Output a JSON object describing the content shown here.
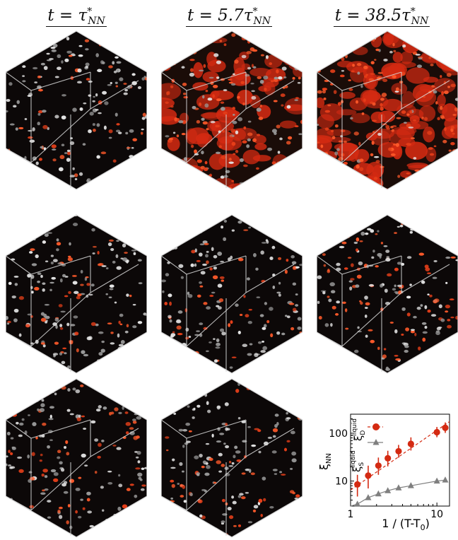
{
  "columns": [
    {
      "title": "t = τ*NN",
      "base": "t = τ",
      "sup": "*",
      "sub": "NN"
    },
    {
      "title": "t = 5.7τ*NN",
      "base": "t = 5.7τ",
      "sup": "*",
      "sub": "NN"
    },
    {
      "title": "t = 38.5τ*NN",
      "base": "t = 38.5τ",
      "sup": "*",
      "sub": "NN"
    }
  ],
  "panels": [
    {
      "row": 0,
      "col": 0,
      "red_fraction": 0.25,
      "dark": true
    },
    {
      "row": 0,
      "col": 1,
      "red_fraction": 0.6,
      "dark": false
    },
    {
      "row": 0,
      "col": 2,
      "red_fraction": 0.85,
      "dark": false
    },
    {
      "row": 1,
      "col": 0,
      "red_fraction": 0.25,
      "dark": true
    },
    {
      "row": 1,
      "col": 1,
      "red_fraction": 0.3,
      "dark": true
    },
    {
      "row": 1,
      "col": 2,
      "red_fraction": 0.45,
      "dark": true
    },
    {
      "row": 2,
      "col": 0,
      "red_fraction": 0.3,
      "dark": true
    },
    {
      "row": 2,
      "col": 1,
      "red_fraction": 0.3,
      "dark": true
    }
  ],
  "colors": {
    "red_series": "#d42a12",
    "gray_series": "#7f7f7f",
    "cube_edge": "#d8d8d8"
  },
  "chart_data": {
    "type": "scatter",
    "xscale": "log",
    "yscale": "log",
    "xlim": [
      1,
      14
    ],
    "ylim": [
      3,
      250
    ],
    "xlabel": "1 / (T-T0)",
    "ylabel": "ξNN",
    "xticks": [
      "1",
      "10"
    ],
    "yticks": [
      "10",
      "100"
    ],
    "series": [
      {
        "name": "ξD liquid",
        "label_base": "ξ",
        "label_sub": "D",
        "label_sup": "liquid",
        "marker": "circle",
        "color": "#d42a12",
        "x": [
          1.2,
          1.6,
          2.1,
          2.7,
          3.6,
          5.0,
          10.0,
          12.5
        ],
        "y": [
          8.5,
          13,
          21,
          30,
          42,
          60,
          105,
          130
        ],
        "err": [
          5,
          8,
          10,
          13,
          15,
          22,
          30,
          38
        ],
        "fit": "dashed"
      },
      {
        "name": "ξS liquid",
        "label_base": "ξ",
        "label_sub": "S",
        "label_sup": "liquid",
        "marker": "triangle",
        "color": "#7f7f7f",
        "x": [
          1.2,
          1.6,
          2.1,
          2.7,
          3.6,
          5.0,
          10.0,
          12.5
        ],
        "y": [
          3.3,
          4.5,
          5.4,
          6.3,
          7.2,
          8.0,
          10.0,
          10.5
        ],
        "fit": "solid"
      }
    ]
  }
}
